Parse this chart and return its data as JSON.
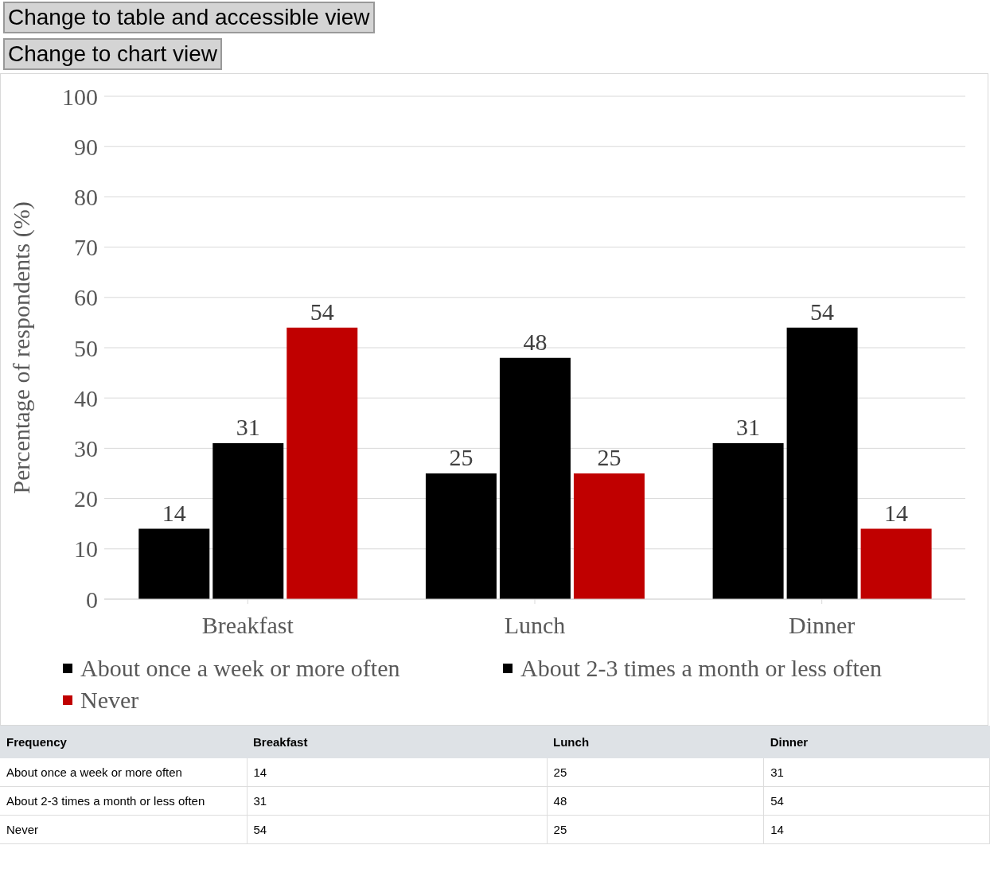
{
  "chart_data": [
    {
      "type": "bar",
      "ylabel": "Percentage of respondents (%)",
      "categories": [
        "Breakfast",
        "Lunch",
        "Dinner"
      ],
      "series": [
        {
          "name": "About once a week or more often",
          "color": "#000000",
          "values": [
            14,
            25,
            31
          ],
          "value_labels": [
            "14",
            "25",
            "31"
          ]
        },
        {
          "name": "About 2-3 times a month or less often",
          "color": "#000000",
          "values": [
            31,
            48,
            54
          ],
          "value_labels": [
            "31",
            "48",
            "54"
          ]
        },
        {
          "name": "Never",
          "color": "#c00000",
          "values": [
            54,
            25,
            14
          ],
          "value_labels": [
            "54",
            "25",
            "14"
          ]
        }
      ],
      "ylim": [
        0,
        100
      ],
      "yticks": [
        0,
        10,
        20,
        30,
        40,
        50,
        60,
        70,
        80,
        90,
        100
      ],
      "grid": "y",
      "legend": "bottom",
      "annotations": [
        "Change to table and accessible view",
        "Change to chart view"
      ]
    },
    {
      "type": "other",
      "legend_title": "Frequency",
      "categories": [
        "Breakfast",
        "Lunch",
        "Dinner"
      ],
      "data_labels": true,
      "series": [
        {
          "name": "About once a week or more often",
          "values": [
            14,
            25,
            31
          ]
        },
        {
          "name": "About 2-3 times a month or less often",
          "values": [
            31,
            48,
            54
          ]
        },
        {
          "name": "Never",
          "values": [
            54,
            25,
            14
          ]
        }
      ]
    }
  ]
}
